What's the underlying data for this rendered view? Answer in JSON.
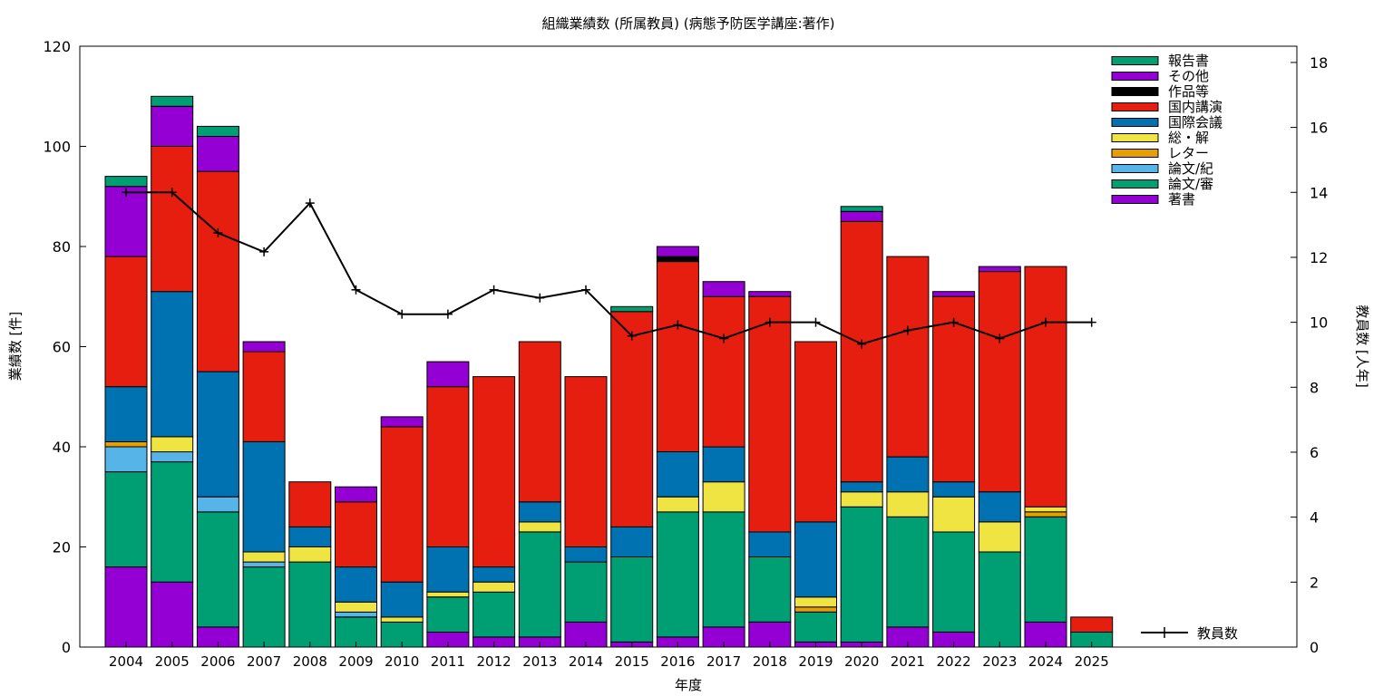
{
  "chart_data": {
    "type": "bar",
    "title": "組織業績数 (所属教員) (病態予防医学講座:著作)",
    "xlabel": "年度",
    "ylabel": "業績数 [件]",
    "y2label": "教員数 [人年]",
    "ylim": [
      0,
      120
    ],
    "y2lim": [
      0,
      18.5
    ],
    "yticks": [
      "0",
      "20",
      "40",
      "60",
      "80",
      "100",
      "120"
    ],
    "y2ticks": [
      "0",
      "2",
      "4",
      "6",
      "8",
      "10",
      "12",
      "14",
      "16",
      "18"
    ],
    "legend_position": "top-right",
    "categories": [
      "2004",
      "2005",
      "2006",
      "2007",
      "2008",
      "2009",
      "2010",
      "2011",
      "2012",
      "2013",
      "2014",
      "2015",
      "2016",
      "2017",
      "2018",
      "2019",
      "2020",
      "2021",
      "2022",
      "2023",
      "2024",
      "2025"
    ],
    "series": [
      {
        "name": "著書",
        "color": "#9400d3",
        "values": [
          16,
          13,
          4,
          0,
          0,
          0,
          0,
          3,
          2,
          2,
          5,
          1,
          2,
          4,
          5,
          1,
          1,
          4,
          3,
          0,
          5,
          0
        ]
      },
      {
        "name": "論文/審",
        "color": "#009e73",
        "values": [
          19,
          24,
          23,
          16,
          17,
          6,
          5,
          7,
          9,
          21,
          12,
          17,
          25,
          23,
          13,
          6,
          27,
          22,
          20,
          19,
          21,
          3
        ]
      },
      {
        "name": "論文/紀",
        "color": "#56b4e9",
        "values": [
          5,
          2,
          3,
          1,
          0,
          1,
          0,
          0,
          0,
          0,
          0,
          0,
          0,
          0,
          0,
          0,
          0,
          0,
          0,
          0,
          0,
          0
        ]
      },
      {
        "name": "レター",
        "color": "#e69f00",
        "values": [
          1,
          0,
          0,
          0,
          0,
          0,
          0,
          0,
          0,
          0,
          0,
          0,
          0,
          0,
          0,
          1,
          0,
          0,
          0,
          0,
          1,
          0
        ]
      },
      {
        "name": "総・解",
        "color": "#f0e442",
        "values": [
          0,
          3,
          0,
          2,
          3,
          2,
          1,
          1,
          2,
          2,
          0,
          0,
          3,
          6,
          0,
          2,
          3,
          5,
          7,
          6,
          1,
          0
        ]
      },
      {
        "name": "国際会議",
        "color": "#0072b2",
        "values": [
          11,
          29,
          25,
          22,
          4,
          7,
          7,
          9,
          3,
          4,
          3,
          6,
          9,
          7,
          5,
          15,
          2,
          7,
          3,
          6,
          0,
          0
        ]
      },
      {
        "name": "国内講演",
        "color": "#e51e10",
        "values": [
          26,
          29,
          40,
          18,
          9,
          13,
          31,
          32,
          38,
          32,
          34,
          43,
          38,
          30,
          47,
          36,
          52,
          40,
          37,
          44,
          48,
          3
        ]
      },
      {
        "name": "作品等",
        "color": "#000000",
        "values": [
          0,
          0,
          0,
          0,
          0,
          0,
          0,
          0,
          0,
          0,
          0,
          0,
          1,
          0,
          0,
          0,
          0,
          0,
          0,
          0,
          0,
          0
        ]
      },
      {
        "name": "その他",
        "color": "#9400d3",
        "values": [
          14,
          8,
          7,
          2,
          0,
          3,
          2,
          5,
          0,
          0,
          0,
          0,
          2,
          3,
          1,
          0,
          2,
          0,
          1,
          1,
          0,
          0
        ]
      },
      {
        "name": "報告書",
        "color": "#009e73",
        "values": [
          2,
          2,
          2,
          0,
          0,
          0,
          0,
          0,
          0,
          0,
          0,
          1,
          0,
          0,
          0,
          0,
          1,
          0,
          0,
          0,
          0,
          0
        ]
      }
    ],
    "line": {
      "name": "教員数",
      "color": "#000000",
      "axis": "y2",
      "values": [
        14,
        14,
        12.75,
        12.17,
        13.67,
        11,
        10.25,
        10.25,
        11,
        10.75,
        11,
        9.58,
        9.92,
        9.5,
        10,
        10,
        9.33,
        9.75,
        10,
        9.5,
        10,
        10
      ]
    }
  }
}
